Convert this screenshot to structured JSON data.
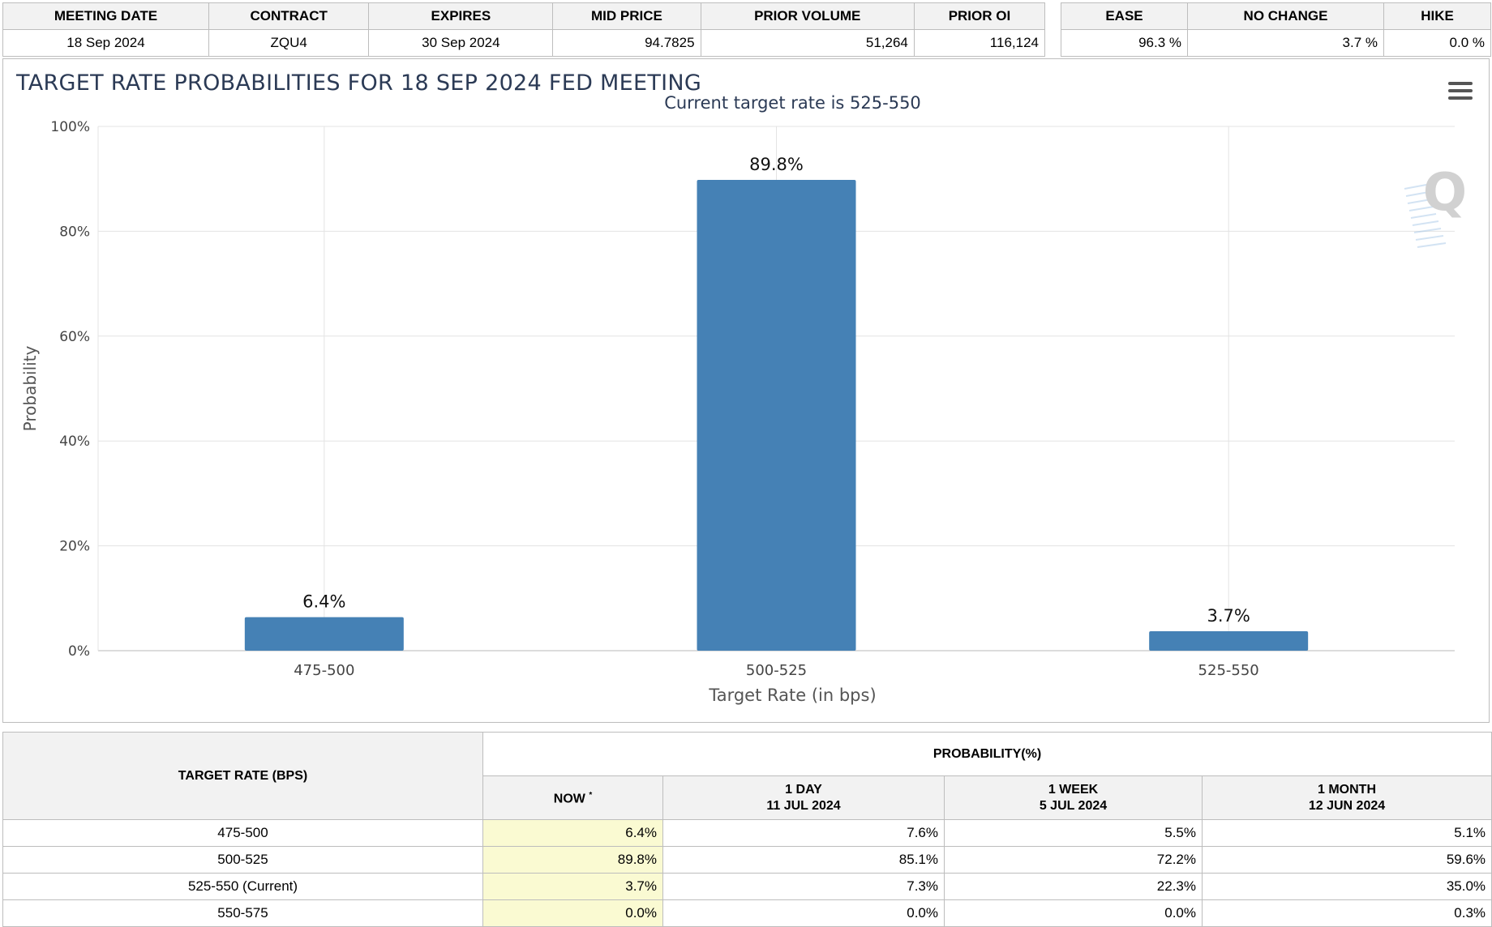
{
  "meeting_table": {
    "headers": [
      "MEETING DATE",
      "CONTRACT",
      "EXPIRES",
      "MID PRICE",
      "PRIOR VOLUME",
      "PRIOR OI"
    ],
    "row": [
      "18 Sep 2024",
      "ZQU4",
      "30 Sep 2024",
      "94.7825",
      "51,264",
      "116,124"
    ]
  },
  "summary_table": {
    "headers": [
      "EASE",
      "NO CHANGE",
      "HIKE"
    ],
    "row": [
      "96.3 %",
      "3.7 %",
      "0.0 %"
    ]
  },
  "chart": {
    "title": "TARGET RATE PROBABILITIES FOR 18 SEP 2024 FED MEETING",
    "menu_icon": "hamburger-menu-icon",
    "watermark_icon": "quikstrike-q-icon",
    "bar_color": "#4581b5"
  },
  "chart_data": {
    "type": "bar",
    "subtitle": "Current target rate is 525-550",
    "categories": [
      "475-500",
      "500-525",
      "525-550"
    ],
    "values": [
      6.4,
      89.8,
      3.7
    ],
    "data_labels": [
      "6.4%",
      "89.8%",
      "3.7%"
    ],
    "xlabel": "Target Rate (in bps)",
    "ylabel": "Probability",
    "ylim": [
      0,
      100
    ],
    "yticks": [
      "0%",
      "20%",
      "40%",
      "60%",
      "80%",
      "100%"
    ],
    "grid": true
  },
  "history_table": {
    "col_target": "TARGET RATE (BPS)",
    "col_probability": "PROBABILITY(%)",
    "col_now": "NOW",
    "col_now_mark": "*",
    "periods": [
      {
        "label": "1 DAY",
        "date": "11 JUL 2024"
      },
      {
        "label": "1 WEEK",
        "date": "5 JUL 2024"
      },
      {
        "label": "1 MONTH",
        "date": "12 JUN 2024"
      }
    ],
    "rows": [
      {
        "rate": "475-500",
        "now": "6.4%",
        "day": "7.6%",
        "week": "5.5%",
        "month": "5.1%"
      },
      {
        "rate": "500-525",
        "now": "89.8%",
        "day": "85.1%",
        "week": "72.2%",
        "month": "59.6%"
      },
      {
        "rate": "525-550 (Current)",
        "now": "3.7%",
        "day": "7.3%",
        "week": "22.3%",
        "month": "35.0%"
      },
      {
        "rate": "550-575",
        "now": "0.0%",
        "day": "0.0%",
        "week": "0.0%",
        "month": "0.3%"
      }
    ]
  }
}
